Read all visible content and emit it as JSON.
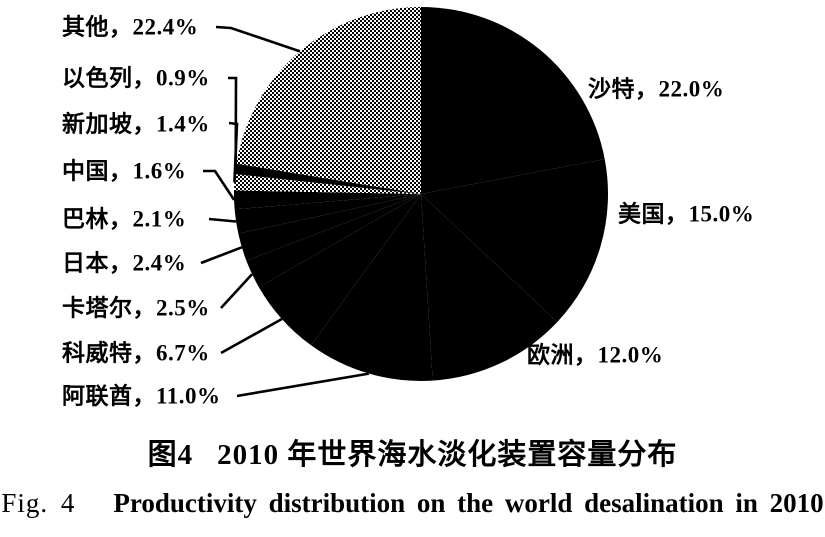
{
  "colors": {
    "ink": "#000000",
    "paper": "#ffffff",
    "halftone_gray": "#808080"
  },
  "chart_data": {
    "type": "pie",
    "unit": "%",
    "start_angle_deg": 0,
    "direction": "clockwise",
    "legend_position": "callout-labels",
    "title": "2010 年世界海水淡化装置容量分布",
    "slices": [
      {
        "name": "沙特",
        "value": 22.0,
        "display": "沙特，22.0%",
        "side": "right",
        "pattern": "solid-black"
      },
      {
        "name": "美国",
        "value": 15.0,
        "display": "美国，15.0%",
        "side": "right",
        "pattern": "solid-black"
      },
      {
        "name": "欧洲",
        "value": 12.0,
        "display": "欧洲，12.0%",
        "side": "right",
        "pattern": "solid-black"
      },
      {
        "name": "阿联酋",
        "value": 11.0,
        "display": "阿联酋，11.0%",
        "side": "left",
        "pattern": "solid-black"
      },
      {
        "name": "科威特",
        "value": 6.7,
        "display": "科威特，6.7%",
        "side": "left",
        "pattern": "solid-black"
      },
      {
        "name": "卡塔尔",
        "value": 2.5,
        "display": "卡塔尔，2.5%",
        "side": "left",
        "pattern": "solid-black"
      },
      {
        "name": "日本",
        "value": 2.4,
        "display": "日本，2.4%",
        "side": "left",
        "pattern": "solid-black"
      },
      {
        "name": "巴林",
        "value": 2.1,
        "display": "巴林，2.1%",
        "side": "left",
        "pattern": "solid-black"
      },
      {
        "name": "中国",
        "value": 1.6,
        "display": "中国，1.6%",
        "side": "left",
        "pattern": "solid-black"
      },
      {
        "name": "新加坡",
        "value": 1.4,
        "display": "新加坡，1.4%",
        "side": "left",
        "pattern": "halftone"
      },
      {
        "name": "以色列",
        "value": 0.9,
        "display": "以色列，0.9%",
        "side": "left",
        "pattern": "solid-black"
      },
      {
        "name": "其他",
        "value": 22.4,
        "display": "其他，22.4%",
        "side": "left",
        "pattern": "halftone"
      }
    ]
  },
  "caption": {
    "zh_prefix": "图4",
    "zh_title": "2010 年世界海水淡化装置容量分布",
    "en_prefix": "Fig. 4",
    "en_title": "Productivity distribution on the world desalination in 2010"
  }
}
